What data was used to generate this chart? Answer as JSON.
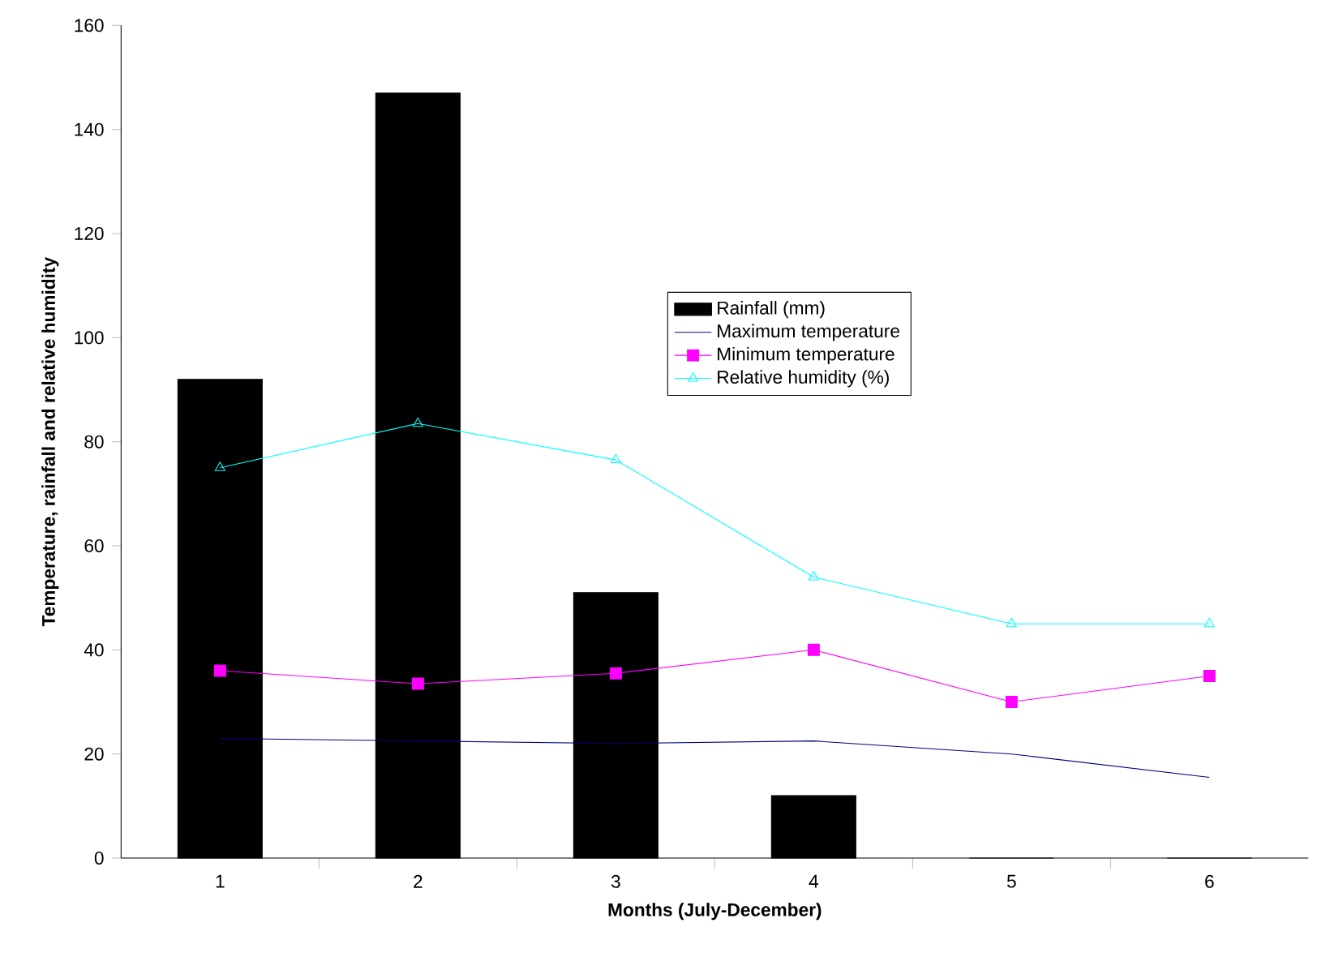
{
  "chart_data": {
    "type": "bar",
    "xlabel": "Months (July-December)",
    "ylabel": "Temperature, rainfall and relative humidity",
    "categories": [
      "1",
      "2",
      "3",
      "4",
      "5",
      "6"
    ],
    "series": [
      {
        "name": "Rainfall (mm)",
        "color": "#000000",
        "values": [
          92,
          147,
          51,
          12,
          0,
          0
        ]
      },
      {
        "name": "Maximum temperature",
        "type": "line",
        "color": "#000080",
        "marker": "none",
        "values": [
          23,
          22.5,
          22,
          22.5,
          20,
          15.5
        ]
      },
      {
        "name": "Minimum temperature",
        "type": "line",
        "color": "#ff00ff",
        "marker": "square",
        "values": [
          36,
          33.5,
          35.5,
          40,
          30,
          35
        ]
      },
      {
        "name": "Relative humidity (%)",
        "type": "line",
        "color": "#00ffff",
        "marker": "triangle",
        "values": [
          75,
          83.5,
          76.5,
          54,
          45,
          45
        ]
      }
    ],
    "ylim": [
      0,
      160
    ],
    "yticks": [
      0,
      20,
      40,
      60,
      80,
      100,
      120,
      140,
      160
    ],
    "legend": "center"
  }
}
